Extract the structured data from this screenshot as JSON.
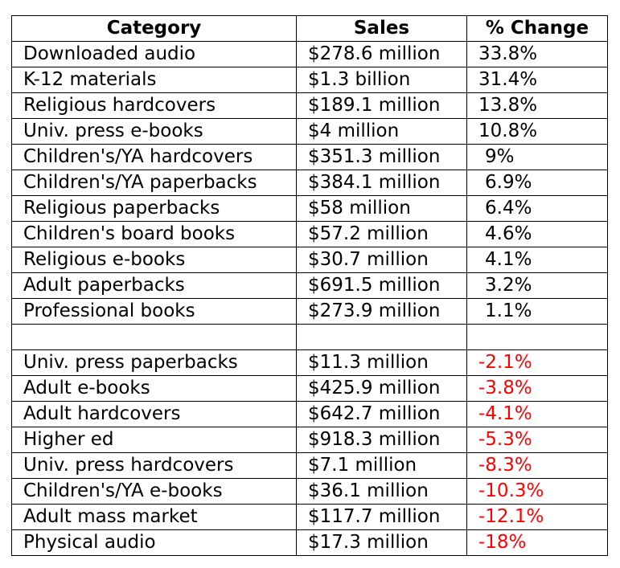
{
  "headers": {
    "category": "Category",
    "sales": "Sales",
    "change": "% Change"
  },
  "rows": [
    {
      "category": "Downloaded audio",
      "sales": "$278.6 million",
      "change": "33.8%"
    },
    {
      "category": "K-12 materials",
      "sales": "$1.3 billion",
      "change": "31.4%"
    },
    {
      "category": "Religious hardcovers",
      "sales": "$189.1 million",
      "change": "13.8%"
    },
    {
      "category": "Univ. press e-books",
      "sales": "$4 million",
      "change": "10.8%"
    },
    {
      "category": "Children's/YA hardcovers",
      "sales": "$351.3 million",
      "change": "9%"
    },
    {
      "category": "Children's/YA paperbacks",
      "sales": "$384.1 million",
      "change": "6.9%"
    },
    {
      "category": "Religious paperbacks",
      "sales": "$58 million",
      "change": "6.4%"
    },
    {
      "category": "Children's board books",
      "sales": "$57.2 million",
      "change": "4.6%"
    },
    {
      "category": "Religious e-books",
      "sales": "$30.7 million",
      "change": "4.1%"
    },
    {
      "category": "Adult paperbacks",
      "sales": "$691.5 million",
      "change": "3.2%"
    },
    {
      "category": "Professional books",
      "sales": "$273.9 million",
      "change": "1.1%"
    },
    {
      "category": "",
      "sales": "",
      "change": ""
    },
    {
      "category": "Univ. press paperbacks",
      "sales": "$11.3 million",
      "change": "-2.1%"
    },
    {
      "category": "Adult e-books",
      "sales": "$425.9 million",
      "change": "-3.8%"
    },
    {
      "category": "Adult hardcovers",
      "sales": "$642.7 million",
      "change": "-4.1%"
    },
    {
      "category": "Higher ed",
      "sales": "$918.3 million",
      "change": "-5.3%"
    },
    {
      "category": "Univ. press hardcovers",
      "sales": "$7.1 million",
      "change": "-8.3%"
    },
    {
      "category": "Children's/YA e-books",
      "sales": "$36.1 million",
      "change": "-10.3%"
    },
    {
      "category": "Adult mass market",
      "sales": "$117.7 million",
      "change": "-12.1%"
    },
    {
      "category": "Physical audio",
      "sales": "$17.3 million",
      "change": "-18%"
    }
  ],
  "colors": {
    "negative": "#ff0000",
    "text": "#000000",
    "border": "#000000"
  }
}
